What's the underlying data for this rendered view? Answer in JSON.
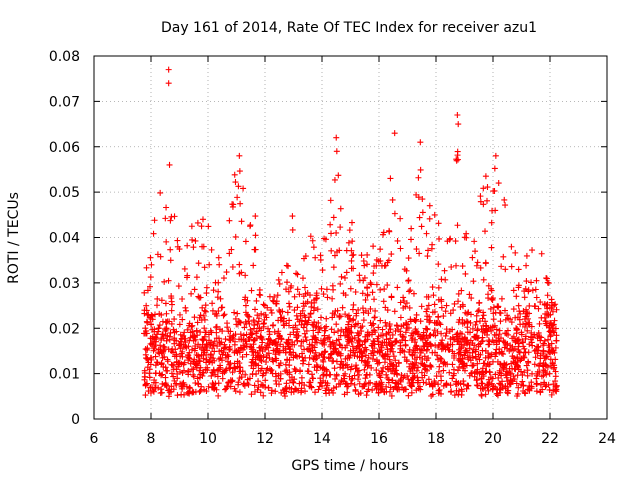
{
  "chart_data": {
    "type": "scatter",
    "title": "Day 161 of 2014, Rate Of TEC Index for receiver azu1",
    "xlabel": "GPS time / hours",
    "ylabel": "ROTI / TECUs",
    "xlim": [
      6,
      24
    ],
    "ylim": [
      0,
      0.08
    ],
    "xticks": [
      "6",
      "8",
      "10",
      "12",
      "14",
      "16",
      "18",
      "20",
      "22",
      "24"
    ],
    "yticks": [
      "0",
      "0.01",
      "0.02",
      "0.03",
      "0.04",
      "0.05",
      "0.06",
      "0.07",
      "0.08"
    ],
    "grid": true,
    "marker": "+",
    "color": "#ff0000",
    "series": [
      {
        "name": "ROTI",
        "envelope": [
          [
            7.75,
            0.034
          ],
          [
            8.0,
            0.037
          ],
          [
            8.25,
            0.052
          ],
          [
            8.5,
            0.05
          ],
          [
            8.75,
            0.047
          ],
          [
            9.0,
            0.043
          ],
          [
            9.25,
            0.038
          ],
          [
            9.5,
            0.046
          ],
          [
            9.75,
            0.042
          ],
          [
            10.0,
            0.05
          ],
          [
            10.25,
            0.048
          ],
          [
            10.5,
            0.042
          ],
          [
            10.75,
            0.047
          ],
          [
            11.0,
            0.057
          ],
          [
            11.25,
            0.054
          ],
          [
            11.5,
            0.054
          ],
          [
            11.75,
            0.041
          ],
          [
            12.0,
            0.025
          ],
          [
            12.25,
            0.028
          ],
          [
            12.5,
            0.033
          ],
          [
            12.75,
            0.04
          ],
          [
            13.0,
            0.047
          ],
          [
            13.25,
            0.038
          ],
          [
            13.5,
            0.043
          ],
          [
            13.75,
            0.04
          ],
          [
            14.0,
            0.043
          ],
          [
            14.25,
            0.047
          ],
          [
            14.5,
            0.06
          ],
          [
            14.75,
            0.039
          ],
          [
            15.0,
            0.044
          ],
          [
            15.25,
            0.042
          ],
          [
            15.5,
            0.036
          ],
          [
            15.75,
            0.041
          ],
          [
            16.0,
            0.036
          ],
          [
            16.25,
            0.049
          ],
          [
            16.5,
            0.062
          ],
          [
            16.75,
            0.051
          ],
          [
            17.0,
            0.038
          ],
          [
            17.25,
            0.047
          ],
          [
            17.5,
            0.06
          ],
          [
            17.75,
            0.053
          ],
          [
            18.0,
            0.046
          ],
          [
            18.25,
            0.044
          ],
          [
            18.5,
            0.041
          ],
          [
            18.75,
            0.066
          ],
          [
            19.0,
            0.042
          ],
          [
            19.25,
            0.046
          ],
          [
            19.5,
            0.049
          ],
          [
            19.75,
            0.055
          ],
          [
            20.0,
            0.058
          ],
          [
            20.25,
            0.052
          ],
          [
            20.5,
            0.049
          ],
          [
            20.75,
            0.043
          ],
          [
            21.0,
            0.038
          ],
          [
            21.25,
            0.036
          ],
          [
            21.5,
            0.039
          ],
          [
            21.75,
            0.036
          ],
          [
            22.0,
            0.03
          ],
          [
            22.25,
            0.024
          ]
        ],
        "outliers": [
          [
            8.62,
            0.077
          ],
          [
            8.62,
            0.074
          ],
          [
            8.65,
            0.056
          ],
          [
            14.5,
            0.062
          ],
          [
            14.52,
            0.059
          ],
          [
            16.55,
            0.063
          ],
          [
            17.45,
            0.061
          ],
          [
            18.75,
            0.067
          ],
          [
            18.78,
            0.065
          ],
          [
            20.1,
            0.058
          ],
          [
            11.1,
            0.058
          ]
        ],
        "baseline_min": 0.005,
        "median": 0.014
      }
    ]
  }
}
